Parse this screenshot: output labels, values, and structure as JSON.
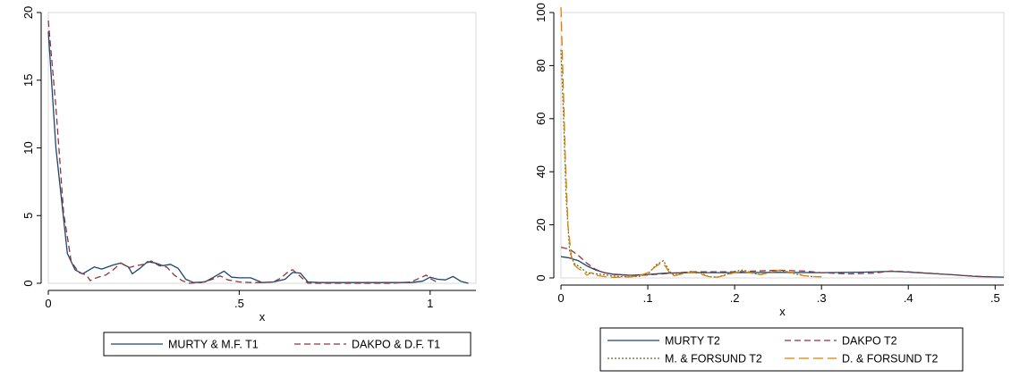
{
  "chart_data": [
    {
      "type": "line",
      "xlabel": "x",
      "ylabel": "",
      "xlim": [
        0,
        1.12
      ],
      "ylim": [
        0,
        20
      ],
      "xticks": [
        {
          "value": 0,
          "label": "0"
        },
        {
          "value": 0.5,
          "label": ".5"
        },
        {
          "value": 1,
          "label": "1"
        }
      ],
      "yticks": [
        {
          "value": 0,
          "label": "0"
        },
        {
          "value": 5,
          "label": "5"
        },
        {
          "value": 10,
          "label": "10"
        },
        {
          "value": 15,
          "label": "15"
        },
        {
          "value": 20,
          "label": "20"
        }
      ],
      "grid": false,
      "legend": "bottom",
      "series": [
        {
          "name": "MURTY & M.F. T1",
          "color": "#1a476f",
          "dash": "solid",
          "points": [
            [
              0,
              18.6
            ],
            [
              0.02,
              10
            ],
            [
              0.05,
              2.2
            ],
            [
              0.07,
              1.0
            ],
            [
              0.09,
              0.7
            ],
            [
              0.12,
              1.2
            ],
            [
              0.14,
              1.05
            ],
            [
              0.17,
              1.35
            ],
            [
              0.19,
              1.5
            ],
            [
              0.21,
              1.2
            ],
            [
              0.22,
              0.7
            ],
            [
              0.24,
              1.1
            ],
            [
              0.26,
              1.6
            ],
            [
              0.28,
              1.5
            ],
            [
              0.3,
              1.3
            ],
            [
              0.32,
              1.4
            ],
            [
              0.34,
              1.1
            ],
            [
              0.36,
              0.3
            ],
            [
              0.38,
              0.05
            ],
            [
              0.41,
              0.1
            ],
            [
              0.43,
              0.4
            ],
            [
              0.46,
              0.9
            ],
            [
              0.48,
              0.45
            ],
            [
              0.5,
              0.4
            ],
            [
              0.53,
              0.4
            ],
            [
              0.56,
              0.05
            ],
            [
              0.59,
              0.1
            ],
            [
              0.62,
              0.3
            ],
            [
              0.64,
              0.8
            ],
            [
              0.66,
              0.75
            ],
            [
              0.68,
              0.1
            ],
            [
              0.71,
              0.05
            ],
            [
              0.8,
              0.05
            ],
            [
              0.95,
              0.05
            ],
            [
              0.98,
              0.15
            ],
            [
              1.0,
              0.45
            ],
            [
              1.02,
              0.3
            ],
            [
              1.04,
              0.25
            ],
            [
              1.06,
              0.5
            ],
            [
              1.08,
              0.15
            ],
            [
              1.1,
              0.0
            ]
          ]
        },
        {
          "name": "DAKPO & D.F. T1",
          "color": "#90353b",
          "dash": "dashed",
          "points": [
            [
              0,
              19.4
            ],
            [
              0.02,
              13
            ],
            [
              0.04,
              5.2
            ],
            [
              0.06,
              1.6
            ],
            [
              0.08,
              0.8
            ],
            [
              0.1,
              0.6
            ],
            [
              0.11,
              0.2
            ],
            [
              0.13,
              0.45
            ],
            [
              0.15,
              0.6
            ],
            [
              0.17,
              1.0
            ],
            [
              0.19,
              1.5
            ],
            [
              0.21,
              1.15
            ],
            [
              0.23,
              1.3
            ],
            [
              0.25,
              1.4
            ],
            [
              0.27,
              1.65
            ],
            [
              0.29,
              1.3
            ],
            [
              0.31,
              1.2
            ],
            [
              0.33,
              0.6
            ],
            [
              0.35,
              0.2
            ],
            [
              0.37,
              0.0
            ],
            [
              0.4,
              0.05
            ],
            [
              0.43,
              0.3
            ],
            [
              0.45,
              0.55
            ],
            [
              0.47,
              0.25
            ],
            [
              0.5,
              0.1
            ],
            [
              0.53,
              0.05
            ],
            [
              0.56,
              0.05
            ],
            [
              0.59,
              0.1
            ],
            [
              0.61,
              0.4
            ],
            [
              0.63,
              0.9
            ],
            [
              0.64,
              1.0
            ],
            [
              0.66,
              0.5
            ],
            [
              0.68,
              0.0
            ],
            [
              0.72,
              0.0
            ],
            [
              0.8,
              0.0
            ],
            [
              0.9,
              0.0
            ],
            [
              0.95,
              0.1
            ],
            [
              0.97,
              0.35
            ],
            [
              0.99,
              0.6
            ],
            [
              1.0,
              0.35
            ],
            [
              1.02,
              0.05
            ]
          ]
        }
      ]
    },
    {
      "type": "line",
      "xlabel": "x",
      "ylabel": "",
      "xlim": [
        0,
        0.51
      ],
      "ylim": [
        0,
        100
      ],
      "xticks": [
        {
          "value": 0,
          "label": "0"
        },
        {
          "value": 0.1,
          "label": ".1"
        },
        {
          "value": 0.2,
          "label": ".2"
        },
        {
          "value": 0.3,
          "label": ".3"
        },
        {
          "value": 0.4,
          "label": ".4"
        },
        {
          "value": 0.5,
          "label": ".5"
        }
      ],
      "yticks": [
        {
          "value": 0,
          "label": "0"
        },
        {
          "value": 20,
          "label": "20"
        },
        {
          "value": 40,
          "label": "40"
        },
        {
          "value": 60,
          "label": "60"
        },
        {
          "value": 80,
          "label": "80"
        },
        {
          "value": 100,
          "label": "100"
        }
      ],
      "grid": false,
      "legend": "bottom",
      "series": [
        {
          "name": "MURTY T2",
          "color": "#1a476f",
          "dash": "solid",
          "points": [
            [
              0,
              8.0
            ],
            [
              0.01,
              7.5
            ],
            [
              0.02,
              6.5
            ],
            [
              0.03,
              4.5
            ],
            [
              0.04,
              3.0
            ],
            [
              0.05,
              2.0
            ],
            [
              0.06,
              1.4
            ],
            [
              0.08,
              1.0
            ],
            [
              0.1,
              1.3
            ],
            [
              0.12,
              1.8
            ],
            [
              0.15,
              2.0
            ],
            [
              0.2,
              2.0
            ],
            [
              0.25,
              2.1
            ],
            [
              0.3,
              2.0
            ],
            [
              0.35,
              2.2
            ],
            [
              0.38,
              2.5
            ],
            [
              0.4,
              2.2
            ],
            [
              0.45,
              1.2
            ],
            [
              0.48,
              0.5
            ],
            [
              0.51,
              0.3
            ]
          ]
        },
        {
          "name": "DAKPO T2",
          "color": "#90353b",
          "dash": "dashed",
          "points": [
            [
              0,
              11.5
            ],
            [
              0.01,
              10.8
            ],
            [
              0.02,
              8.5
            ],
            [
              0.03,
              5.5
            ],
            [
              0.04,
              3.2
            ],
            [
              0.05,
              2.0
            ],
            [
              0.06,
              1.3
            ],
            [
              0.08,
              0.9
            ],
            [
              0.1,
              1.1
            ],
            [
              0.12,
              1.6
            ],
            [
              0.15,
              2.3
            ],
            [
              0.2,
              2.3
            ],
            [
              0.25,
              2.9
            ],
            [
              0.28,
              2.6
            ],
            [
              0.3,
              2.0
            ],
            [
              0.33,
              1.5
            ],
            [
              0.36,
              1.8
            ],
            [
              0.38,
              2.6
            ],
            [
              0.4,
              2.3
            ],
            [
              0.45,
              1.2
            ],
            [
              0.48,
              0.6
            ],
            [
              0.5,
              0.4
            ]
          ]
        },
        {
          "name": "M. & FORSUND T2",
          "color": "#55752f",
          "dash": "dotted",
          "points": [
            [
              0,
              86
            ],
            [
              0.003,
              60
            ],
            [
              0.006,
              30
            ],
            [
              0.01,
              10
            ],
            [
              0.015,
              5.5
            ],
            [
              0.02,
              4.5
            ],
            [
              0.03,
              2.0
            ],
            [
              0.04,
              1.5
            ],
            [
              0.05,
              1.2
            ],
            [
              0.06,
              0.7
            ],
            [
              0.07,
              0.5
            ],
            [
              0.08,
              0.5
            ],
            [
              0.09,
              0.6
            ],
            [
              0.1,
              1.5
            ],
            [
              0.11,
              5.0
            ],
            [
              0.118,
              6.5
            ],
            [
              0.125,
              2.5
            ],
            [
              0.13,
              1.0
            ],
            [
              0.14,
              1.8
            ],
            [
              0.15,
              2.5
            ],
            [
              0.16,
              2.0
            ],
            [
              0.17,
              0.5
            ],
            [
              0.18,
              0.3
            ],
            [
              0.19,
              1.2
            ],
            [
              0.2,
              2.5
            ],
            [
              0.21,
              3.0
            ],
            [
              0.22,
              1.8
            ],
            [
              0.23,
              1.2
            ],
            [
              0.24,
              2.2
            ],
            [
              0.25,
              3.0
            ],
            [
              0.26,
              2.3
            ],
            [
              0.27,
              1.5
            ],
            [
              0.28,
              0.8
            ],
            [
              0.29,
              0.5
            ]
          ]
        },
        {
          "name": "D. & FORSUND T2",
          "color": "#e37e00",
          "dash": "longdash",
          "points": [
            [
              0,
              102
            ],
            [
              0.002,
              80
            ],
            [
              0.005,
              45
            ],
            [
              0.008,
              20
            ],
            [
              0.012,
              8
            ],
            [
              0.015,
              5
            ],
            [
              0.02,
              3.5
            ],
            [
              0.025,
              2.5
            ],
            [
              0.03,
              1.0
            ],
            [
              0.035,
              2.0
            ],
            [
              0.04,
              1.0
            ],
            [
              0.05,
              0.5
            ],
            [
              0.06,
              0.2
            ],
            [
              0.07,
              0.3
            ],
            [
              0.08,
              0.4
            ],
            [
              0.09,
              0.8
            ],
            [
              0.1,
              2.0
            ],
            [
              0.11,
              4.5
            ],
            [
              0.115,
              5.5
            ],
            [
              0.12,
              4.5
            ],
            [
              0.125,
              2.0
            ],
            [
              0.13,
              0.8
            ],
            [
              0.14,
              1.5
            ],
            [
              0.15,
              2.2
            ],
            [
              0.16,
              1.5
            ],
            [
              0.17,
              0.5
            ],
            [
              0.18,
              0.3
            ],
            [
              0.19,
              1.0
            ],
            [
              0.2,
              2.0
            ],
            [
              0.21,
              2.5
            ],
            [
              0.22,
              1.8
            ],
            [
              0.23,
              1.2
            ],
            [
              0.24,
              2.0
            ],
            [
              0.25,
              2.8
            ],
            [
              0.26,
              2.4
            ],
            [
              0.27,
              1.8
            ],
            [
              0.28,
              0.8
            ],
            [
              0.29,
              0.5
            ],
            [
              0.3,
              0.4
            ]
          ]
        }
      ]
    }
  ]
}
